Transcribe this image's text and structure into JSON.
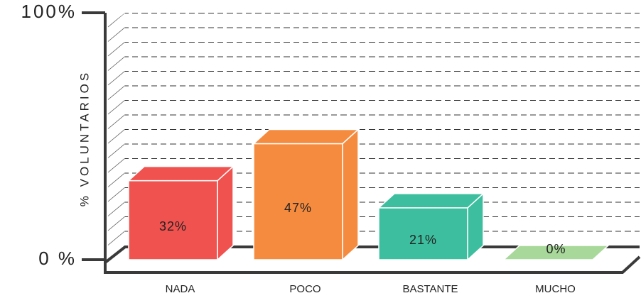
{
  "chart_data": {
    "type": "bar",
    "y_label": "% VOLUNTARIOS",
    "categories": [
      "NADA",
      "POCO",
      "BASTANTE",
      "MUCHO"
    ],
    "values": [
      32,
      47,
      21,
      0
    ],
    "value_labels": [
      "32%",
      "47%",
      "21%",
      "0%"
    ],
    "colors": [
      "#f0524f",
      "#f58b3f",
      "#3dbf9f",
      "#a8d89a"
    ],
    "ylim": [
      0,
      100
    ],
    "yticks": [
      {
        "value": 0,
        "label": "0 %"
      },
      {
        "value": 100,
        "label": "100%"
      }
    ]
  }
}
